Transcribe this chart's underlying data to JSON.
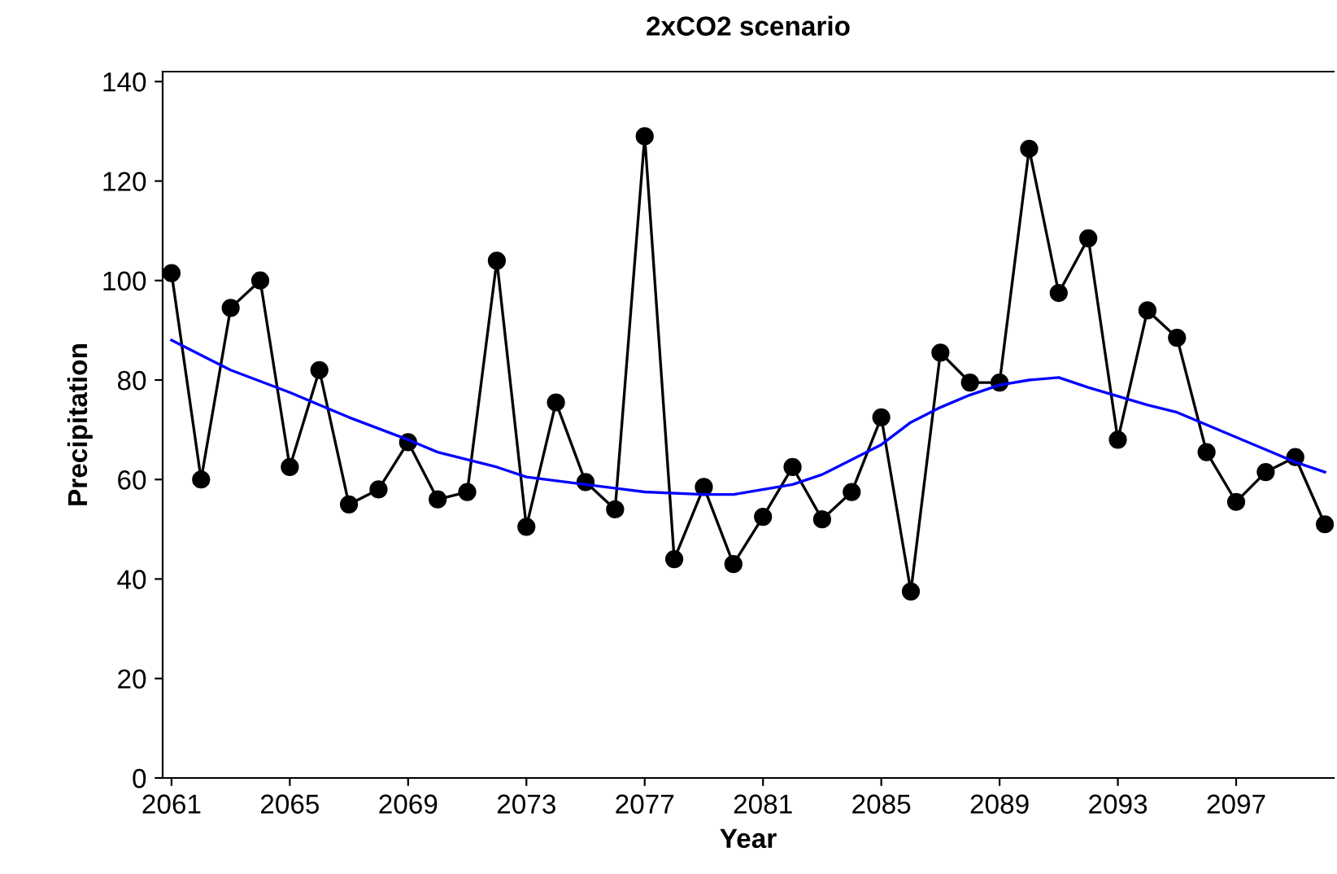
{
  "chart_data": {
    "type": "line",
    "title": "2xCO2 scenario",
    "xlabel": "Year",
    "ylabel": "Precipitation",
    "x": [
      2061,
      2062,
      2063,
      2064,
      2065,
      2066,
      2067,
      2068,
      2069,
      2070,
      2071,
      2072,
      2073,
      2074,
      2075,
      2076,
      2077,
      2078,
      2079,
      2080,
      2081,
      2082,
      2083,
      2084,
      2085,
      2086,
      2087,
      2088,
      2089,
      2090,
      2091,
      2092,
      2093,
      2094,
      2095,
      2096,
      2097,
      2098,
      2099,
      2100
    ],
    "series": [
      {
        "color": "#000000",
        "marker": "circle",
        "values": [
          101.5,
          60,
          94.5,
          100,
          62.5,
          82,
          55,
          58,
          67.5,
          56,
          57.5,
          104,
          50.5,
          75.5,
          59.5,
          54,
          129,
          44,
          58.5,
          43,
          52.5,
          62.5,
          52,
          57.5,
          72.5,
          37.5,
          85.5,
          79.5,
          79.5,
          126.5,
          97.5,
          108.5,
          68,
          94,
          88.5,
          65.5,
          55.5,
          61.5,
          64.5,
          51
        ]
      },
      {
        "color": "#0000ff",
        "marker": "none",
        "x": [
          2061,
          2063,
          2065,
          2067,
          2069,
          2070,
          2072,
          2073,
          2075,
          2077,
          2079,
          2080,
          2082,
          2083,
          2085,
          2086,
          2087,
          2088,
          2089,
          2090,
          2091,
          2092,
          2094,
          2095,
          2096,
          2097,
          2098,
          2099,
          2100
        ],
        "values": [
          88,
          82,
          77.5,
          72.5,
          68,
          65.5,
          62.5,
          60.5,
          59,
          57.5,
          57,
          57,
          59,
          61,
          67,
          71.5,
          74.5,
          77,
          79,
          80,
          80.5,
          78.5,
          75,
          73.5,
          71,
          68.5,
          66,
          63.5,
          61.5
        ]
      }
    ],
    "xlim": [
      2060.7,
      2100.3
    ],
    "ylim": [
      0,
      142
    ],
    "xticks": [
      2061,
      2065,
      2069,
      2073,
      2077,
      2081,
      2085,
      2089,
      2093,
      2097
    ],
    "yticks": [
      0,
      20,
      40,
      60,
      80,
      100,
      120,
      140
    ],
    "grid": false,
    "line_style": "solid"
  }
}
